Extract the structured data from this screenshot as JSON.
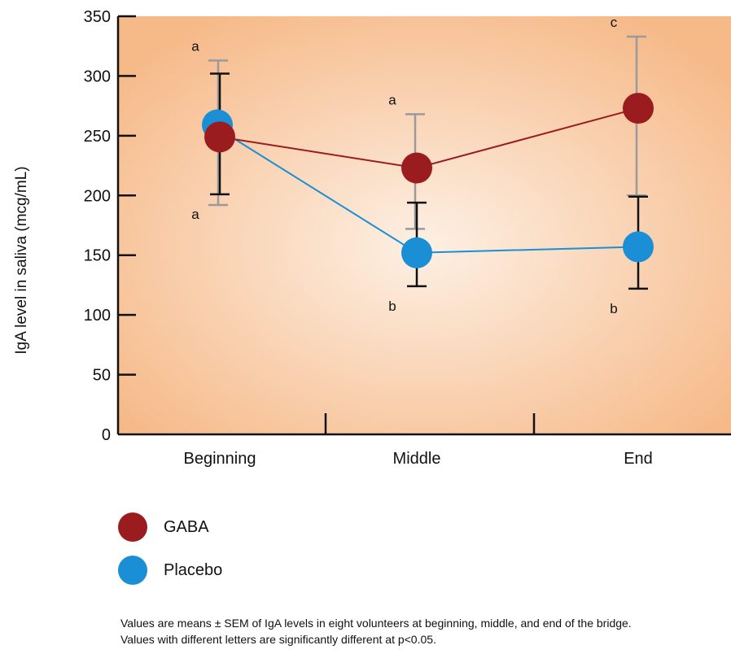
{
  "chart_data": {
    "type": "line",
    "title": "",
    "xlabel": "",
    "ylabel": "IgA level in saliva (mcg/mL)",
    "ylim": [
      0,
      350
    ],
    "yticks": [
      0,
      50,
      100,
      150,
      200,
      250,
      300,
      350
    ],
    "categories": [
      "Beginning",
      "Middle",
      "End"
    ],
    "series": [
      {
        "name": "GABA",
        "color": "#9b1c1f",
        "values": [
          249,
          223,
          273
        ],
        "error_low": [
          192,
          172,
          200
        ],
        "error_high": [
          313,
          268,
          333
        ],
        "letters": [
          "a",
          "a",
          "c"
        ]
      },
      {
        "name": "Placebo",
        "color": "#1a8fd6",
        "values": [
          255,
          152,
          157
        ],
        "error_low": [
          201,
          124,
          122
        ],
        "error_high": [
          302,
          194,
          199
        ],
        "letters": [
          "a",
          "b",
          "b"
        ]
      }
    ],
    "error_bar_colors": {
      "GABA": "#9a9a9a",
      "Placebo": "#111111"
    },
    "background": {
      "center": "#fdf0e4",
      "edge": "#f6b988"
    },
    "legend_position": "bottom-left"
  },
  "footnote": {
    "line1": "Values are means ± SEM of IgA levels in eight volunteers at beginning, middle, and end of the bridge.",
    "line2": "Values with different letters are significantly different at p<0.05."
  }
}
